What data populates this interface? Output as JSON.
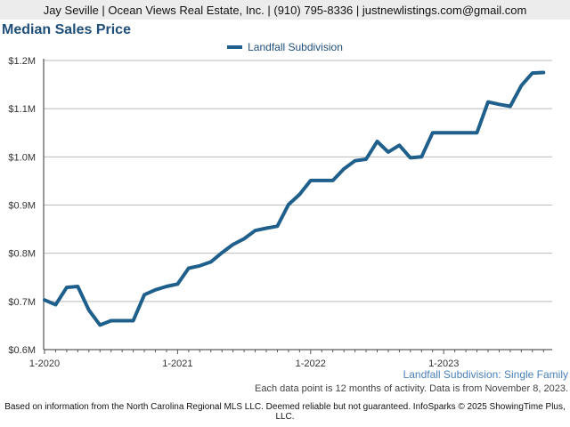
{
  "header": {
    "text": "Jay Seville | Ocean Views Real Estate, Inc. | (910) 795-8336 | justnewlistings.com@gmail.com"
  },
  "subtitle": "Landfall Subdivision: Single Family",
  "note": "Each data point is 12 months of activity. Data is from November 8, 2023.",
  "footer": "Based on information from the North Carolina Regional MLS LLC. Deemed reliable but not guaranteed. InfoSparks © 2025 ShowingTime Plus, LLC.",
  "colors": {
    "series": "#1f5f8b",
    "title": "#1f4e79",
    "grid": "#bbbbbb"
  },
  "chart_data": {
    "type": "line",
    "title": "Median Sales Price",
    "xlabel": "",
    "ylabel": "",
    "ylim": [
      0.6,
      1.2
    ],
    "yticks": [
      {
        "value": 0.6,
        "label": "$0.6M"
      },
      {
        "value": 0.7,
        "label": "$0.7M"
      },
      {
        "value": 0.8,
        "label": "$0.8M"
      },
      {
        "value": 0.9,
        "label": "$0.9M"
      },
      {
        "value": 1.0,
        "label": "$1.0M"
      },
      {
        "value": 1.1,
        "label": "$1.1M"
      },
      {
        "value": 1.2,
        "label": "$1.2M"
      }
    ],
    "xlim": [
      "2020-01",
      "2023-10"
    ],
    "xticks": [
      {
        "value": "2020-01",
        "label": "1-2020"
      },
      {
        "value": "2021-01",
        "label": "1-2021"
      },
      {
        "value": "2022-01",
        "label": "1-2022"
      },
      {
        "value": "2023-01",
        "label": "1-2023"
      }
    ],
    "grid": true,
    "legend": "top-center",
    "series": [
      {
        "name": "Landfall Subdivision",
        "x": [
          "2020-01",
          "2020-02",
          "2020-03",
          "2020-04",
          "2020-05",
          "2020-06",
          "2020-07",
          "2020-08",
          "2020-09",
          "2020-10",
          "2020-11",
          "2020-12",
          "2021-01",
          "2021-02",
          "2021-03",
          "2021-04",
          "2021-05",
          "2021-06",
          "2021-07",
          "2021-08",
          "2021-09",
          "2021-10",
          "2021-11",
          "2021-12",
          "2022-01",
          "2022-02",
          "2022-03",
          "2022-04",
          "2022-05",
          "2022-06",
          "2022-07",
          "2022-08",
          "2022-09",
          "2022-10",
          "2022-11",
          "2022-12",
          "2023-01",
          "2023-02",
          "2023-03",
          "2023-04",
          "2023-05",
          "2023-06",
          "2023-07",
          "2023-08",
          "2023-09",
          "2023-10"
        ],
        "values": [
          0.703,
          0.693,
          0.729,
          0.731,
          0.682,
          0.651,
          0.66,
          0.66,
          0.66,
          0.714,
          0.724,
          0.731,
          0.736,
          0.769,
          0.774,
          0.782,
          0.801,
          0.818,
          0.83,
          0.847,
          0.852,
          0.856,
          0.901,
          0.922,
          0.951,
          0.951,
          0.951,
          0.975,
          0.992,
          0.995,
          1.032,
          1.01,
          1.024,
          0.998,
          1.0,
          1.05,
          1.05,
          1.05,
          1.05,
          1.05,
          1.114,
          1.109,
          1.105,
          1.148,
          1.174,
          1.175
        ]
      }
    ]
  }
}
